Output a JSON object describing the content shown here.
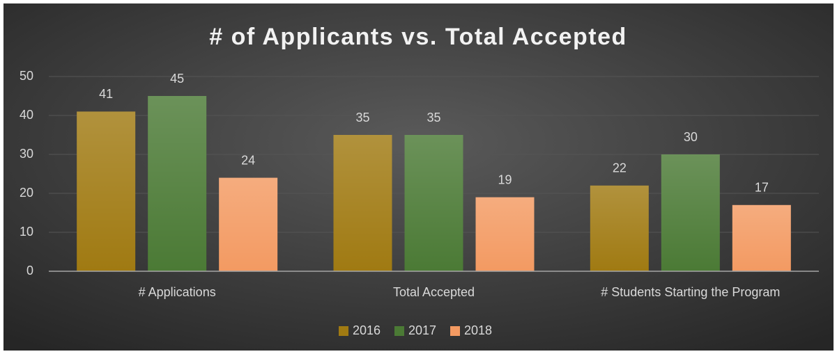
{
  "chart_data": {
    "type": "bar",
    "title": "# of Applicants vs. Total Accepted",
    "categories": [
      "# Applications",
      "Total Accepted",
      "# Students Starting the Program"
    ],
    "series": [
      {
        "name": "2016",
        "color": "#a07a12",
        "values": [
          41,
          35,
          22
        ]
      },
      {
        "name": "2017",
        "color": "#4b7a35",
        "values": [
          45,
          35,
          30
        ]
      },
      {
        "name": "2018",
        "color": "#f39a62",
        "values": [
          24,
          19,
          17
        ]
      }
    ],
    "ylim": [
      0,
      50
    ],
    "yticks": [
      0,
      10,
      20,
      30,
      40,
      50
    ],
    "grid": true,
    "legend": "bottom"
  }
}
